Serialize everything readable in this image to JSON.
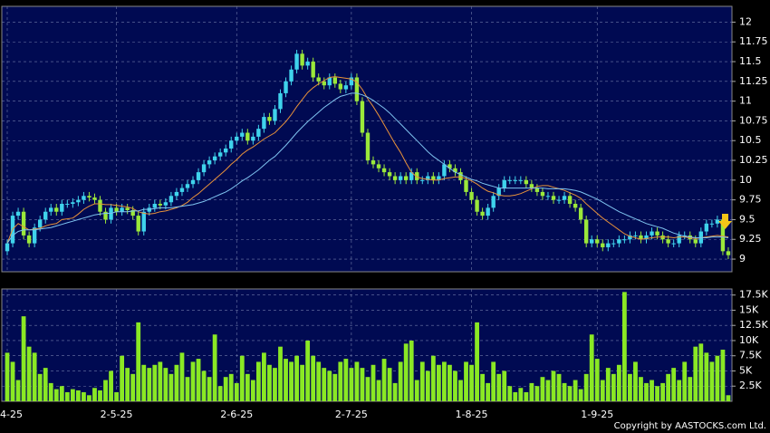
{
  "chart_data": [
    {
      "type": "candlestick",
      "categories": [
        "4-25",
        null,
        null,
        null,
        null,
        null,
        null,
        null,
        null,
        null,
        null,
        null,
        null,
        null,
        null,
        null,
        null,
        null,
        null,
        null,
        "2-5-25",
        null,
        null,
        null,
        null,
        null,
        null,
        null,
        null,
        null,
        null,
        null,
        null,
        null,
        null,
        null,
        null,
        null,
        null,
        null,
        null,
        null,
        "2-6-25",
        null,
        null,
        null,
        null,
        null,
        null,
        null,
        null,
        null,
        null,
        null,
        null,
        null,
        null,
        null,
        null,
        null,
        null,
        null,
        null,
        "2-7-25",
        null,
        null,
        null,
        null,
        null,
        null,
        null,
        null,
        null,
        null,
        null,
        null,
        null,
        null,
        null,
        null,
        null,
        null,
        null,
        null,
        null,
        "1-8-25",
        null,
        null,
        null,
        null,
        null,
        null,
        null,
        null,
        null,
        null,
        null,
        null,
        null,
        null,
        null,
        null,
        null,
        null,
        null,
        null,
        null,
        null,
        "1-9-25",
        null,
        null,
        null,
        null,
        null,
        null,
        null,
        null,
        null,
        null,
        null,
        null,
        null,
        null,
        null,
        null,
        null,
        null,
        null,
        null,
        null,
        null,
        null,
        null
      ],
      "open": [
        9.1,
        9.2,
        9.55,
        9.6,
        9.3,
        9.2,
        9.4,
        9.5,
        9.6,
        9.65,
        9.6,
        9.7,
        9.7,
        9.72,
        9.75,
        9.8,
        9.78,
        9.75,
        9.6,
        9.5,
        9.65,
        9.6,
        9.65,
        9.62,
        9.55,
        9.35,
        9.6,
        9.65,
        9.7,
        9.68,
        9.72,
        9.8,
        9.85,
        9.9,
        9.95,
        10.0,
        10.1,
        10.2,
        10.25,
        10.3,
        10.35,
        10.4,
        10.5,
        10.55,
        10.6,
        10.5,
        10.55,
        10.65,
        10.8,
        10.75,
        10.9,
        11.1,
        11.25,
        11.4,
        11.6,
        11.45,
        11.5,
        11.3,
        11.25,
        11.2,
        11.3,
        11.22,
        11.15,
        11.2,
        11.3,
        11.0,
        10.6,
        10.25,
        10.2,
        10.15,
        10.1,
        10.05,
        10.0,
        10.05,
        10.0,
        10.1,
        10.0,
        10.0,
        10.05,
        10.0,
        10.05,
        10.2,
        10.15,
        10.1,
        10.0,
        9.85,
        9.75,
        9.6,
        9.55,
        9.65,
        9.8,
        9.9,
        10.0,
        10.0,
        10.0,
        10.0,
        9.95,
        9.9,
        9.85,
        9.8,
        9.8,
        9.75,
        9.75,
        9.8,
        9.7,
        9.65,
        9.5,
        9.2,
        9.25,
        9.2,
        9.15,
        9.2,
        9.2,
        9.25,
        9.25,
        9.3,
        9.3,
        9.25,
        9.3,
        9.35,
        9.3,
        9.25,
        9.2,
        9.2,
        9.3,
        9.3,
        9.25,
        9.2,
        9.35,
        9.45,
        9.45,
        9.5,
        9.1
      ],
      "high": [
        9.25,
        9.6,
        9.65,
        9.65,
        9.35,
        9.45,
        9.55,
        9.65,
        9.7,
        9.7,
        9.75,
        9.75,
        9.77,
        9.8,
        9.85,
        9.85,
        9.83,
        9.8,
        9.65,
        9.7,
        9.7,
        9.7,
        9.7,
        9.67,
        9.6,
        9.65,
        9.7,
        9.75,
        9.75,
        9.77,
        9.85,
        9.9,
        9.95,
        10.0,
        10.05,
        10.15,
        10.25,
        10.3,
        10.35,
        10.4,
        10.45,
        10.55,
        10.6,
        10.65,
        10.65,
        10.6,
        10.7,
        10.85,
        10.85,
        10.95,
        11.15,
        11.3,
        11.45,
        11.65,
        11.65,
        11.55,
        11.55,
        11.35,
        11.3,
        11.35,
        11.35,
        11.27,
        11.25,
        11.35,
        11.35,
        11.05,
        10.65,
        10.3,
        10.25,
        10.2,
        10.15,
        10.1,
        10.1,
        10.1,
        10.15,
        10.15,
        10.05,
        10.1,
        10.1,
        10.1,
        10.25,
        10.25,
        10.2,
        10.15,
        10.05,
        9.9,
        9.8,
        9.65,
        9.7,
        9.85,
        9.95,
        10.05,
        10.05,
        10.05,
        10.05,
        10.05,
        10.0,
        9.95,
        9.9,
        9.85,
        9.85,
        9.8,
        9.85,
        9.85,
        9.75,
        9.7,
        9.55,
        9.3,
        9.3,
        9.25,
        9.25,
        9.25,
        9.3,
        9.3,
        9.35,
        9.35,
        9.35,
        9.35,
        9.4,
        9.4,
        9.35,
        9.3,
        9.25,
        9.35,
        9.35,
        9.35,
        9.3,
        9.4,
        9.5,
        9.5,
        9.55,
        9.55,
        9.15
      ],
      "low": [
        9.05,
        9.15,
        9.5,
        9.25,
        9.15,
        9.15,
        9.35,
        9.45,
        9.55,
        9.55,
        9.55,
        9.65,
        9.65,
        9.67,
        9.7,
        9.73,
        9.7,
        9.55,
        9.45,
        9.45,
        9.55,
        9.55,
        9.57,
        9.5,
        9.3,
        9.3,
        9.55,
        9.6,
        9.63,
        9.63,
        9.67,
        9.75,
        9.8,
        9.85,
        9.9,
        9.95,
        10.05,
        10.15,
        10.2,
        10.25,
        10.3,
        10.35,
        10.45,
        10.5,
        10.45,
        10.45,
        10.5,
        10.6,
        10.7,
        10.7,
        10.85,
        11.05,
        11.2,
        11.35,
        11.4,
        11.4,
        11.25,
        11.2,
        11.15,
        11.15,
        11.17,
        11.1,
        11.1,
        11.15,
        10.95,
        10.55,
        10.2,
        10.15,
        10.1,
        10.05,
        10.0,
        9.95,
        9.95,
        9.95,
        9.95,
        9.95,
        9.95,
        9.95,
        9.95,
        9.95,
        10.0,
        10.1,
        10.05,
        9.95,
        9.8,
        9.7,
        9.55,
        9.5,
        9.5,
        9.6,
        9.75,
        9.85,
        9.95,
        9.95,
        9.95,
        9.9,
        9.85,
        9.8,
        9.75,
        9.75,
        9.7,
        9.7,
        9.7,
        9.65,
        9.6,
        9.45,
        9.15,
        9.15,
        9.15,
        9.1,
        9.1,
        9.15,
        9.15,
        9.2,
        9.2,
        9.25,
        9.2,
        9.2,
        9.25,
        9.25,
        9.2,
        9.15,
        9.15,
        9.15,
        9.25,
        9.2,
        9.15,
        9.15,
        9.3,
        9.4,
        9.4,
        9.05,
        9.0
      ],
      "close": [
        9.2,
        9.55,
        9.6,
        9.3,
        9.2,
        9.4,
        9.5,
        9.6,
        9.65,
        9.6,
        9.7,
        9.7,
        9.72,
        9.75,
        9.8,
        9.78,
        9.75,
        9.6,
        9.5,
        9.65,
        9.6,
        9.65,
        9.62,
        9.55,
        9.35,
        9.6,
        9.65,
        9.7,
        9.68,
        9.72,
        9.8,
        9.85,
        9.9,
        9.95,
        10.0,
        10.1,
        10.2,
        10.25,
        10.3,
        10.35,
        10.4,
        10.5,
        10.55,
        10.6,
        10.5,
        10.55,
        10.65,
        10.8,
        10.75,
        10.9,
        11.1,
        11.25,
        11.4,
        11.6,
        11.45,
        11.5,
        11.3,
        11.25,
        11.2,
        11.3,
        11.22,
        11.15,
        11.2,
        11.3,
        11.0,
        10.6,
        10.25,
        10.2,
        10.15,
        10.1,
        10.05,
        10.0,
        10.05,
        10.0,
        10.1,
        10.0,
        10.0,
        10.05,
        10.0,
        10.05,
        10.2,
        10.15,
        10.1,
        10.0,
        9.85,
        9.75,
        9.6,
        9.55,
        9.65,
        9.8,
        9.9,
        10.0,
        10.0,
        10.0,
        10.0,
        9.95,
        9.9,
        9.85,
        9.8,
        9.8,
        9.75,
        9.75,
        9.8,
        9.7,
        9.65,
        9.5,
        9.2,
        9.25,
        9.2,
        9.15,
        9.2,
        9.2,
        9.25,
        9.25,
        9.3,
        9.3,
        9.25,
        9.3,
        9.35,
        9.3,
        9.25,
        9.2,
        9.2,
        9.3,
        9.3,
        9.25,
        9.2,
        9.35,
        9.45,
        9.45,
        9.5,
        9.1,
        9.05
      ],
      "up_color": "#3fd3ec",
      "down_color": "#9be83a",
      "lines": [
        {
          "color": "#e8923a",
          "values": [
            9.2,
            9.38,
            9.45,
            9.41,
            9.37,
            9.38,
            9.39,
            9.42,
            9.44,
            9.45,
            9.5,
            9.51,
            9.52,
            9.57,
            9.63,
            9.67,
            9.7,
            9.7,
            9.69,
            9.69,
            9.68,
            9.67,
            9.66,
            9.64,
            9.6,
            9.58,
            9.57,
            9.58,
            9.6,
            9.61,
            9.63,
            9.65,
            9.68,
            9.72,
            9.78,
            9.83,
            9.89,
            9.95,
            10.01,
            10.07,
            10.13,
            10.2,
            10.26,
            10.33,
            10.38,
            10.42,
            10.47,
            10.52,
            10.56,
            10.6,
            10.67,
            10.74,
            10.83,
            10.93,
            11.02,
            11.11,
            11.17,
            11.22,
            11.26,
            11.3,
            11.31,
            11.3,
            11.29,
            11.28,
            11.24,
            11.15,
            11.03,
            10.93,
            10.82,
            10.7,
            10.58,
            10.46,
            10.35,
            10.22,
            10.1,
            10.04,
            10.02,
            10.01,
            10.0,
            10.0,
            10.02,
            10.03,
            10.04,
            10.04,
            10.02,
            9.99,
            9.95,
            9.9,
            9.86,
            9.84,
            9.81,
            9.8,
            9.8,
            9.81,
            9.83,
            9.86,
            9.89,
            9.92,
            9.93,
            9.93,
            9.91,
            9.89,
            9.87,
            9.84,
            9.81,
            9.77,
            9.7,
            9.64,
            9.58,
            9.52,
            9.47,
            9.42,
            9.37,
            9.32,
            9.29,
            9.27,
            9.25,
            9.26,
            9.27,
            9.28,
            9.28,
            9.28,
            9.27,
            9.28,
            9.28,
            9.27,
            9.26,
            9.27,
            9.28,
            9.29,
            9.3,
            9.29,
            9.28
          ]
        },
        {
          "color": "#7fc4f0",
          "values": [
            9.2,
            9.3,
            9.35,
            9.37,
            9.37,
            9.37,
            9.38,
            9.39,
            9.4,
            9.42,
            9.44,
            9.46,
            9.48,
            9.5,
            9.52,
            9.54,
            9.56,
            9.57,
            9.58,
            9.58,
            9.6,
            9.6,
            9.6,
            9.61,
            9.61,
            9.63,
            9.63,
            9.64,
            9.65,
            9.65,
            9.65,
            9.66,
            9.67,
            9.68,
            9.69,
            9.71,
            9.73,
            9.76,
            9.79,
            9.82,
            9.85,
            9.89,
            9.94,
            9.99,
            10.03,
            10.08,
            10.13,
            10.19,
            10.25,
            10.3,
            10.37,
            10.44,
            10.52,
            10.6,
            10.67,
            10.74,
            10.8,
            10.86,
            10.92,
            10.97,
            11.02,
            11.06,
            11.08,
            11.1,
            11.1,
            11.08,
            11.05,
            11.01,
            10.96,
            10.91,
            10.85,
            10.78,
            10.71,
            10.64,
            10.57,
            10.5,
            10.43,
            10.36,
            10.3,
            10.25,
            10.2,
            10.15,
            10.1,
            10.07,
            10.04,
            10.01,
            9.99,
            9.96,
            9.94,
            9.92,
            9.9,
            9.9,
            9.9,
            9.9,
            9.9,
            9.9,
            9.9,
            9.9,
            9.9,
            9.89,
            9.89,
            9.89,
            9.89,
            9.88,
            9.87,
            9.85,
            9.82,
            9.79,
            9.76,
            9.72,
            9.68,
            9.64,
            9.6,
            9.57,
            9.54,
            9.51,
            9.48,
            9.45,
            9.43,
            9.41,
            9.39,
            9.36,
            9.33,
            9.31,
            9.29,
            9.28,
            9.27,
            9.27,
            9.27,
            9.28,
            9.28,
            9.28,
            9.27
          ]
        }
      ],
      "ylim": [
        8.84,
        12.2
      ],
      "yticks": [
        9,
        9.25,
        9.5,
        9.75,
        10,
        10.25,
        10.5,
        10.75,
        11,
        11.25,
        11.5,
        11.75,
        12
      ],
      "grid": true
    },
    {
      "type": "bar",
      "values": [
        8000,
        6500,
        3500,
        14000,
        9000,
        8000,
        4500,
        5500,
        3000,
        2000,
        2500,
        1500,
        2000,
        1800,
        1500,
        1000,
        2200,
        1800,
        3500,
        5000,
        1500,
        7500,
        5500,
        4500,
        13000,
        6000,
        5500,
        6000,
        6500,
        5500,
        4500,
        6000,
        8000,
        4000,
        6500,
        7000,
        5000,
        4000,
        11000,
        2500,
        4000,
        4500,
        3000,
        7500,
        4500,
        3500,
        6500,
        8000,
        6000,
        5500,
        9000,
        7000,
        6500,
        7500,
        6000,
        10000,
        7500,
        6500,
        5500,
        5000,
        4500,
        6500,
        7000,
        5500,
        6500,
        5500,
        4000,
        6000,
        3500,
        7000,
        5500,
        3000,
        6500,
        9500,
        10000,
        3500,
        6500,
        5000,
        7500,
        6000,
        6500,
        6000,
        5000,
        3500,
        6500,
        6000,
        13000,
        4500,
        3000,
        6500,
        4500,
        5000,
        2500,
        1500,
        2200,
        1500,
        3000,
        2500,
        4000,
        3500,
        5000,
        4500,
        3000,
        2500,
        3500,
        2000,
        4500,
        11000,
        7000,
        3500,
        5500,
        4500,
        6000,
        18000,
        4500,
        6500,
        4000,
        3000,
        3500,
        2500,
        3000,
        4500,
        5500,
        3500,
        6500,
        4000,
        9000,
        9500,
        8000,
        6500,
        7500,
        8500,
        1000
      ],
      "color": "#8ae824",
      "ylim": [
        0,
        18500
      ],
      "yticks": [
        {
          "value": 2500,
          "label": "2.5K"
        },
        {
          "value": 5000,
          "label": "5K"
        },
        {
          "value": 7500,
          "label": "7.5K"
        },
        {
          "value": 10000,
          "label": "10K"
        },
        {
          "value": 12500,
          "label": "12.5K"
        },
        {
          "value": 15000,
          "label": "15K"
        },
        {
          "value": 17500,
          "label": "17.5K"
        }
      ],
      "grid": true
    }
  ],
  "footer": "Copyright by AASTOCKS.com Ltd."
}
